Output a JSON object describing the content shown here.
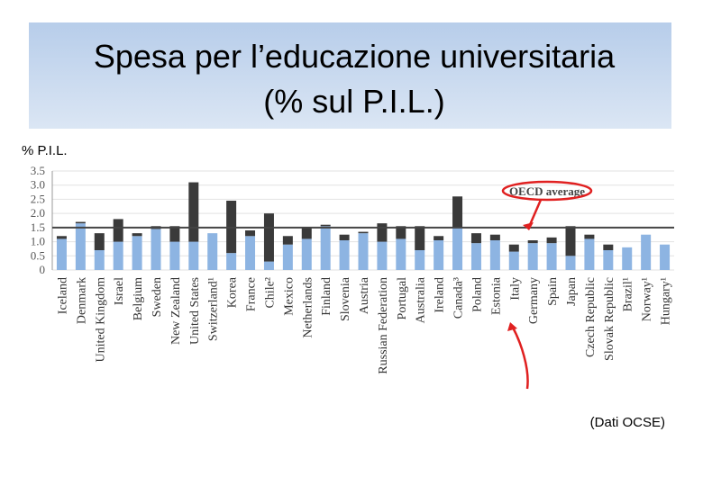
{
  "title": "Spesa per l’educazione universitaria",
  "subtitle": "(% sul P.I.L.)",
  "source": "(Dati OCSE)",
  "chart_data": {
    "type": "stacked_bar",
    "y_label": "% P.I.L.",
    "categories": [
      "Iceland",
      "Denmark",
      "United Kingdom",
      "Israel",
      "Belgium",
      "Sweden",
      "New Zealand",
      "United States",
      "Switzerland¹",
      "Korea",
      "France",
      "Chile²",
      "Mexico",
      "Netherlands",
      "Finland",
      "Slovenia",
      "Austria",
      "Russian Federation",
      "Portugal",
      "Australia",
      "Ireland",
      "Canada³",
      "Poland",
      "Estonia",
      "Italy",
      "Germany",
      "Spain",
      "Japan",
      "Czech Republic",
      "Slovak Republic",
      "Brazil¹",
      "Norway¹",
      "Hungary¹"
    ],
    "series": [
      {
        "color": "#8db4e2",
        "values": [
          1.1,
          1.65,
          0.7,
          1.0,
          1.2,
          1.45,
          1.0,
          1.0,
          1.3,
          0.6,
          1.2,
          0.3,
          0.9,
          1.1,
          1.55,
          1.05,
          1.3,
          1.0,
          1.1,
          0.7,
          1.05,
          1.5,
          0.95,
          1.05,
          0.65,
          0.95,
          0.95,
          0.5,
          1.1,
          0.7,
          0.8,
          1.25,
          0.9
        ]
      },
      {
        "color": "#3a3a3a",
        "values": [
          0.1,
          0.05,
          0.6,
          0.8,
          0.1,
          0.1,
          0.55,
          2.1,
          null,
          1.85,
          0.2,
          1.7,
          0.3,
          0.4,
          0.05,
          0.2,
          0.05,
          0.65,
          0.45,
          0.85,
          0.15,
          1.1,
          0.35,
          0.2,
          0.25,
          0.1,
          0.2,
          1.05,
          0.15,
          0.2,
          null,
          null,
          null
        ]
      }
    ],
    "oecd_label": "OECD average",
    "oecd_average": 1.5,
    "ylim": [
      0,
      3.5
    ],
    "yticks": [
      0,
      0.5,
      {
        "value": 1,
        "label": "1.0"
      },
      1.5,
      {
        "value": 2,
        "label": "2.0"
      },
      2.5,
      {
        "value": 3,
        "label": "3.0"
      },
      3.5
    ],
    "grid": true
  }
}
